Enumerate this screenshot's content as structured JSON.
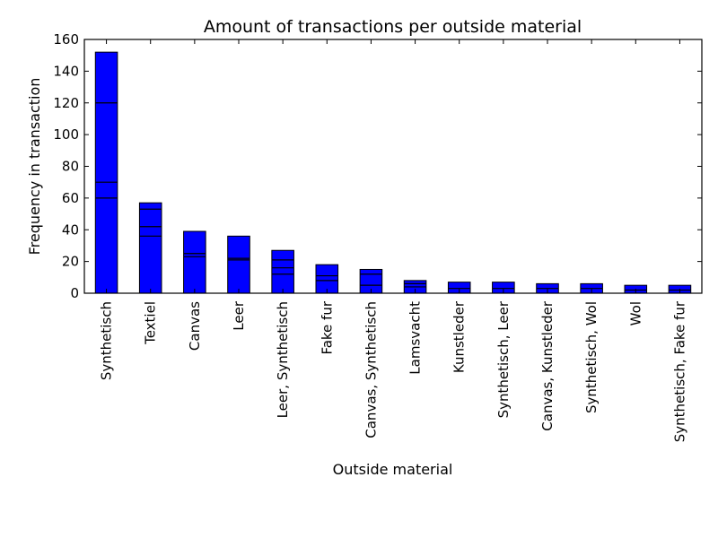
{
  "chart_data": {
    "type": "bar",
    "title": "Amount of transactions per outside material",
    "xlabel": "Outside material",
    "ylabel": "Frequency in transaction",
    "ylim": [
      0,
      160
    ],
    "yticks": [
      0,
      20,
      40,
      60,
      80,
      100,
      120,
      140,
      160
    ],
    "grid": false,
    "legend": "none",
    "bar_color": "#0000ff",
    "edge_color": "#000000",
    "categories": [
      "Synthetisch",
      "Textiel",
      "Canvas",
      "Leer",
      "Leer, Synthetisch",
      "Fake fur",
      "Canvas, Synthetisch",
      "Lamsvacht",
      "Kunstleder",
      "Synthetisch, Leer",
      "Canvas, Kunstleder",
      "Synthetisch, Wol",
      "Wol",
      "Synthetisch, Fake fur"
    ],
    "values": [
      152,
      57,
      39,
      36,
      27,
      18,
      15,
      8,
      7,
      7,
      6,
      6,
      5,
      5
    ],
    "segment_boundaries": [
      [
        60,
        70,
        120
      ],
      [
        36,
        42,
        53
      ],
      [
        23,
        25
      ],
      [
        21,
        22
      ],
      [
        12,
        16,
        21
      ],
      [
        8,
        11
      ],
      [
        5,
        12
      ],
      [
        4,
        6
      ],
      [
        3
      ],
      [
        3
      ],
      [
        3
      ],
      [
        3
      ],
      [
        2
      ],
      [
        2
      ]
    ]
  }
}
